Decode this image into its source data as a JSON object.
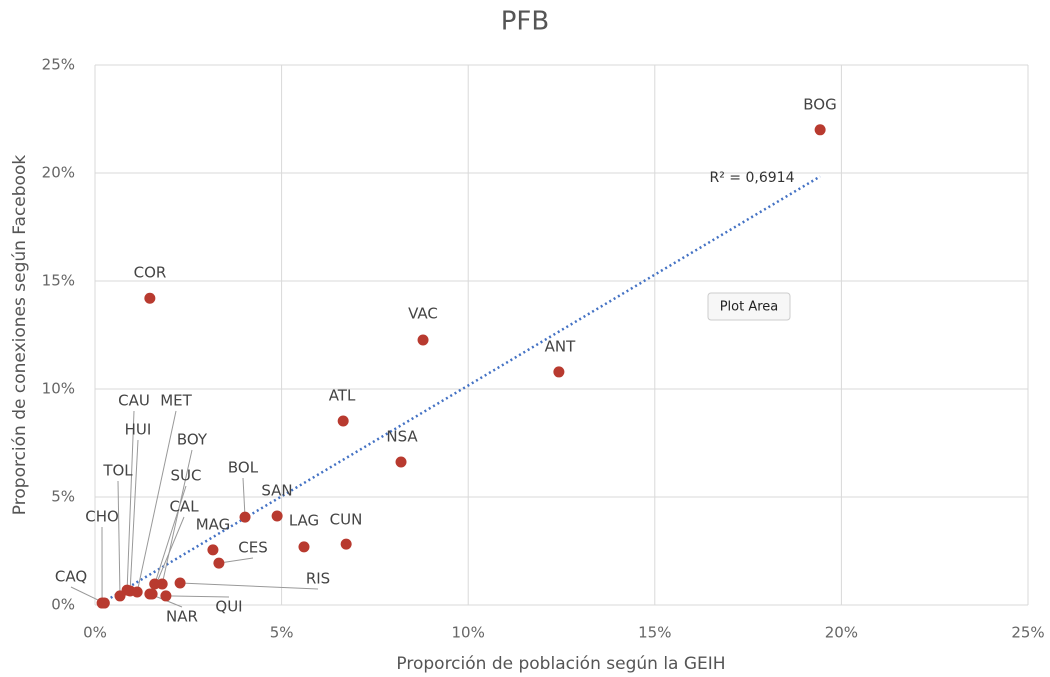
{
  "chart_data": {
    "type": "scatter",
    "title": "PFB",
    "x_label": "Proporción de población según la GEIH",
    "y_label": "Proporción de conexiones según Facebook",
    "xlim": [
      0,
      25
    ],
    "ylim": [
      0,
      25
    ],
    "xticks": [
      {
        "value": 0,
        "label": "0%"
      },
      {
        "value": 5,
        "label": "5%"
      },
      {
        "value": 10,
        "label": "10%"
      },
      {
        "value": 15,
        "label": "15%"
      },
      {
        "value": 20,
        "label": "20%"
      },
      {
        "value": 25,
        "label": "25%"
      }
    ],
    "yticks": [
      {
        "value": 0,
        "label": "0%"
      },
      {
        "value": 5,
        "label": "5%"
      },
      {
        "value": 10,
        "label": "10%"
      },
      {
        "value": 15,
        "label": "15%"
      },
      {
        "value": 20,
        "label": "20%"
      },
      {
        "value": 25,
        "label": "25%"
      }
    ],
    "grid": true,
    "color": "#b83a2f",
    "trendline_color": "#4472c4",
    "trendline_label": "R² = 0,6914",
    "tooltip": "Plot Area",
    "labels": [
      "BOG",
      "COR",
      "VAC",
      "ANT",
      "ATL",
      "NSA",
      "BOL",
      "SAN",
      "LAG",
      "CUN",
      "MAG",
      "CES",
      "RIS",
      "CHO",
      "CAQ",
      "HUI",
      "MET",
      "CAU",
      "BOY",
      "TOL",
      "SUC",
      "CAL",
      "NAR",
      "QUI"
    ],
    "x": [
      19.43,
      1.47,
      8.79,
      12.43,
      6.65,
      8.2,
      4.02,
      4.88,
      5.6,
      6.73,
      3.16,
      3.32,
      2.28,
      0.19,
      0.25,
      0.94,
      1.13,
      0.86,
      1.8,
      0.67,
      1.6,
      1.53,
      1.47,
      1.9
    ],
    "y": [
      22.0,
      14.2,
      12.27,
      10.79,
      8.52,
      6.62,
      4.07,
      4.12,
      2.69,
      2.82,
      2.55,
      1.94,
      1.02,
      0.09,
      0.09,
      0.65,
      0.6,
      0.69,
      0.97,
      0.42,
      0.97,
      0.51,
      0.51,
      0.42
    ]
  }
}
